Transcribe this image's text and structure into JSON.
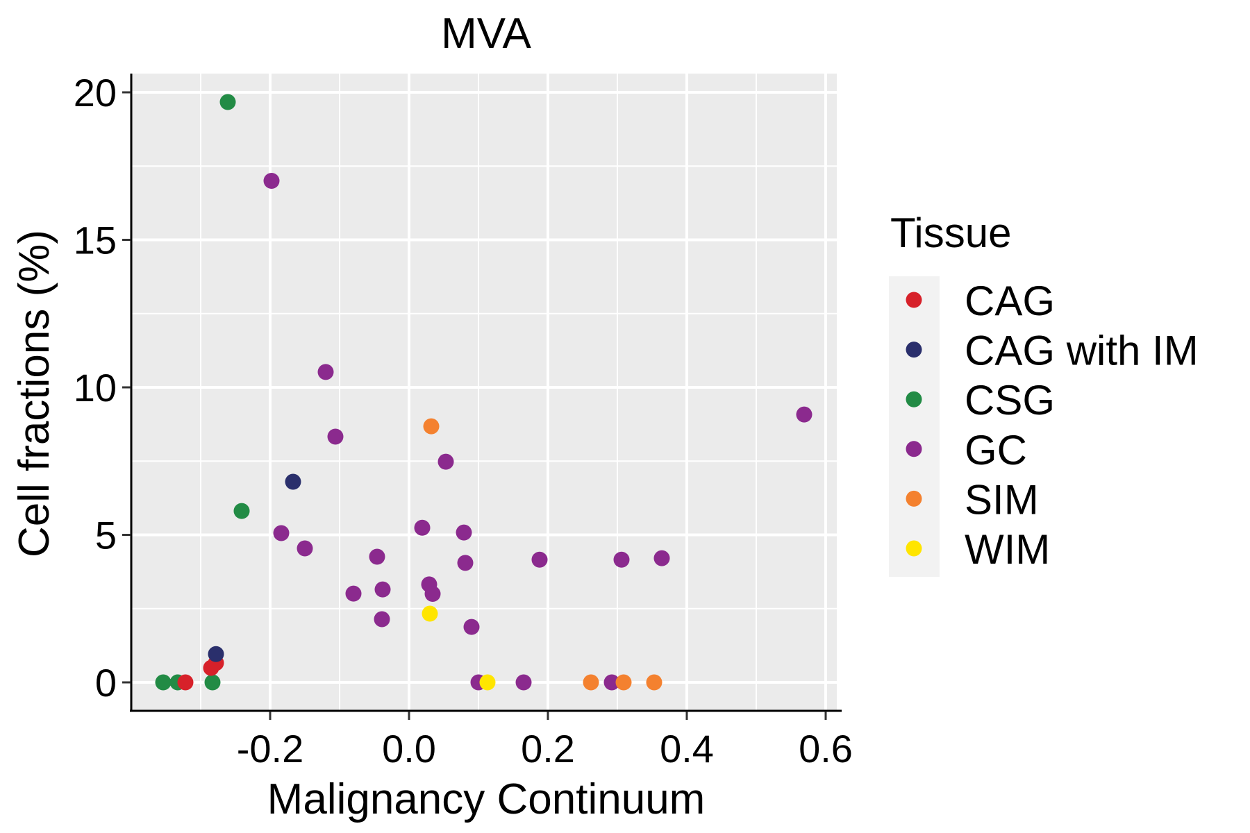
{
  "chart_data": {
    "type": "scatter",
    "title": "MVA",
    "xlabel": "Malignancy Continuum",
    "ylabel": "Cell fractions (%)",
    "xlim": [
      -0.38,
      0.62
    ],
    "ylim": [
      -1.0,
      20.6
    ],
    "xticks": [
      -0.2,
      0.0,
      0.2,
      0.4,
      0.6
    ],
    "xtick_labels": [
      "-0.2",
      "0.0",
      "0.2",
      "0.4",
      "0.6"
    ],
    "yticks": [
      0,
      5,
      10,
      15,
      20
    ],
    "ytick_labels": [
      "0",
      "5",
      "10",
      "15",
      "20"
    ],
    "x_minor_gridlines": [
      -0.3,
      -0.1,
      0.1,
      0.3,
      0.5
    ],
    "y_minor_gridlines": [
      2.5,
      7.5,
      12.5,
      17.5
    ],
    "grid": true,
    "legend": {
      "title": "Tissue",
      "position": "right",
      "entries": [
        {
          "label": "CAG",
          "color": "#D7212A"
        },
        {
          "label": "CAG with IM",
          "color": "#2A2F6C"
        },
        {
          "label": "CSG",
          "color": "#228B45"
        },
        {
          "label": "GC",
          "color": "#8B2A8E"
        },
        {
          "label": "SIM",
          "color": "#F4812F"
        },
        {
          "label": "WIM",
          "color": "#FFE500"
        }
      ]
    },
    "series": [
      {
        "name": "CSG",
        "color": "#228B45",
        "points": [
          {
            "x": -0.354,
            "y": 0.0
          },
          {
            "x": -0.333,
            "y": 0.0
          },
          {
            "x": -0.283,
            "y": 0.0
          },
          {
            "x": -0.261,
            "y": 19.67
          },
          {
            "x": -0.241,
            "y": 5.81
          }
        ]
      },
      {
        "name": "CAG",
        "color": "#D7212A",
        "points": [
          {
            "x": -0.322,
            "y": 0.0
          },
          {
            "x": -0.285,
            "y": 0.49
          },
          {
            "x": -0.278,
            "y": 0.66
          }
        ]
      },
      {
        "name": "CAG with IM",
        "color": "#2A2F6C",
        "points": [
          {
            "x": -0.278,
            "y": 0.96
          },
          {
            "x": -0.167,
            "y": 6.8
          }
        ]
      },
      {
        "name": "GC",
        "color": "#8B2A8E",
        "points": [
          {
            "x": -0.198,
            "y": 17.0
          },
          {
            "x": -0.184,
            "y": 5.06
          },
          {
            "x": -0.15,
            "y": 4.54
          },
          {
            "x": -0.12,
            "y": 10.52
          },
          {
            "x": -0.106,
            "y": 8.33
          },
          {
            "x": -0.08,
            "y": 3.01
          },
          {
            "x": -0.046,
            "y": 4.26
          },
          {
            "x": -0.039,
            "y": 2.14
          },
          {
            "x": -0.038,
            "y": 3.15
          },
          {
            "x": 0.019,
            "y": 5.24
          },
          {
            "x": 0.029,
            "y": 3.32
          },
          {
            "x": 0.034,
            "y": 3.0
          },
          {
            "x": 0.053,
            "y": 7.48
          },
          {
            "x": 0.079,
            "y": 5.08
          },
          {
            "x": 0.081,
            "y": 4.05
          },
          {
            "x": 0.09,
            "y": 1.88
          },
          {
            "x": 0.1,
            "y": 0.0
          },
          {
            "x": 0.165,
            "y": 0.0
          },
          {
            "x": 0.188,
            "y": 4.16
          },
          {
            "x": 0.292,
            "y": 0.0
          },
          {
            "x": 0.306,
            "y": 4.16
          },
          {
            "x": 0.364,
            "y": 4.21
          },
          {
            "x": 0.569,
            "y": 9.08
          }
        ]
      },
      {
        "name": "SIM",
        "color": "#F4812F",
        "points": [
          {
            "x": 0.032,
            "y": 8.68
          },
          {
            "x": 0.262,
            "y": 0.0
          },
          {
            "x": 0.309,
            "y": 0.0
          },
          {
            "x": 0.353,
            "y": 0.0
          }
        ]
      },
      {
        "name": "WIM",
        "color": "#FFE500",
        "points": [
          {
            "x": 0.03,
            "y": 2.33
          },
          {
            "x": 0.113,
            "y": 0.0
          }
        ]
      }
    ],
    "draw_order": [
      "CSG",
      "CAG",
      "CAG with IM",
      "GC",
      "SIM",
      "WIM"
    ]
  },
  "colors": {
    "panel_background": "#EBEBEB",
    "gridline": "#FFFFFF",
    "axis_line": "#000000",
    "legend_key_background": "#F2F2F2"
  }
}
